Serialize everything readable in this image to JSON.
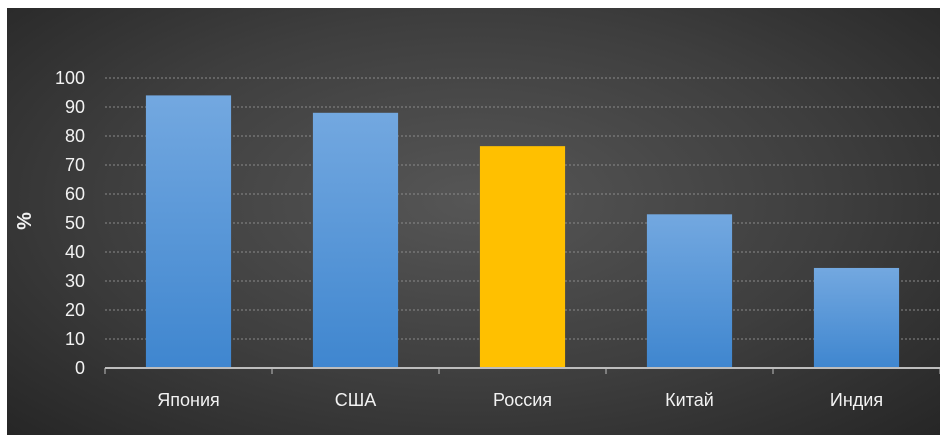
{
  "chart_data": {
    "type": "bar",
    "categories": [
      "Япония",
      "США",
      "Россия",
      "Китай",
      "Индия"
    ],
    "values": [
      94,
      88,
      76.5,
      53,
      34.5
    ],
    "highlight_index": 2,
    "ylabel": "%",
    "xlabel": "",
    "title": "",
    "ylim": [
      0,
      100
    ],
    "yticks": [
      "0",
      "10",
      "20",
      "30",
      "40",
      "50",
      "60",
      "70",
      "80",
      "90",
      "100"
    ],
    "grid": true,
    "legend": "none"
  },
  "colors": {
    "bar_default_top": "#73a8e0",
    "bar_default_bottom": "#3f86cf",
    "bar_highlight": "#ffc000",
    "text": "#f2f2f2",
    "gridline": "#8a8a8a",
    "axis": "#bdbdbd"
  }
}
